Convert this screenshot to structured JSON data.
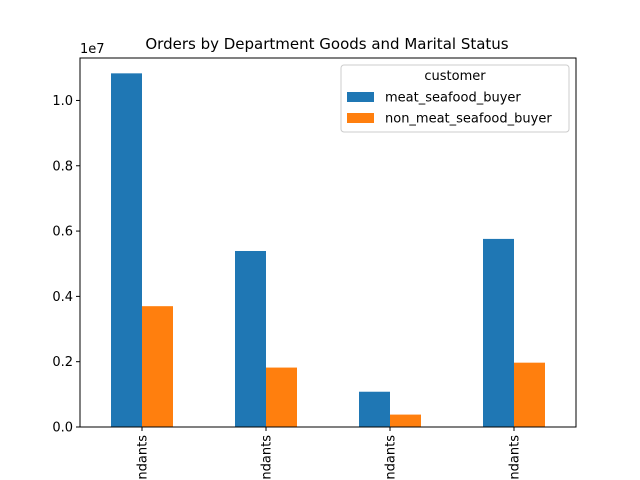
{
  "chart_data": {
    "type": "bar",
    "title": "Orders by Department Goods and Marital Status",
    "xlabel": "",
    "ylabel": "",
    "y_offset_label": "1e7",
    "y_scale": 10000000,
    "categories": [
      "ndants",
      "ndants",
      "ndants",
      "ndants"
    ],
    "series": [
      {
        "name": "meat_seafood_buyer",
        "color": "#1f77b4",
        "values": [
          10830000,
          5390000,
          1080000,
          5760000
        ]
      },
      {
        "name": "non_meat_seafood_buyer",
        "color": "#ff7f0e",
        "values": [
          3700000,
          1820000,
          380000,
          1970000
        ]
      }
    ],
    "ylim": [
      0,
      11300000
    ],
    "yticks": [
      0,
      2000000,
      4000000,
      6000000,
      8000000,
      10000000
    ],
    "ytick_labels": [
      "0.0",
      "0.2",
      "0.4",
      "0.6",
      "0.8",
      "1.0"
    ],
    "legend": {
      "title": "customer",
      "position": "top-right"
    },
    "grid": false
  }
}
